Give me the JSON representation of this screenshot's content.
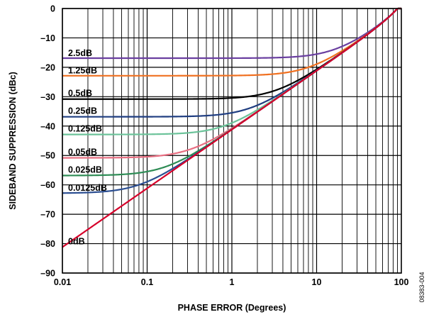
{
  "chart_data": {
    "type": "line",
    "xlabel": "PHASE ERROR (Degrees)",
    "ylabel": "SIDEBAND SUPPRESSION (dBc)",
    "x_scale": "log",
    "xlim": [
      0.01,
      100
    ],
    "ylim": [
      -90,
      0
    ],
    "grid": true,
    "x_ticks": [
      {
        "value": 0.01,
        "label": "0.01"
      },
      {
        "value": 0.1,
        "label": "0.1"
      },
      {
        "value": 1,
        "label": "1"
      },
      {
        "value": 10,
        "label": "10"
      },
      {
        "value": 100,
        "label": "100"
      }
    ],
    "y_ticks": [
      {
        "value": 0,
        "label": "0"
      },
      {
        "value": -10,
        "label": "–10"
      },
      {
        "value": -20,
        "label": "–20"
      },
      {
        "value": -30,
        "label": "–30"
      },
      {
        "value": -40,
        "label": "–40"
      },
      {
        "value": -50,
        "label": "–50"
      },
      {
        "value": -60,
        "label": "–60"
      },
      {
        "value": -70,
        "label": "–70"
      },
      {
        "value": -80,
        "label": "–80"
      },
      {
        "value": -90,
        "label": "–90"
      }
    ],
    "series": [
      {
        "name": "2.5dB",
        "gain_error_db": 2.5,
        "color": "#6a3fa0",
        "y_at_0_01": -17.1
      },
      {
        "name": "1.25dB",
        "gain_error_db": 1.25,
        "color": "#f07020",
        "y_at_0_01": -23.0
      },
      {
        "name": "0.5dB",
        "gain_error_db": 0.5,
        "color": "#000000",
        "y_at_0_01": -30.8
      },
      {
        "name": "0.25dB",
        "gain_error_db": 0.25,
        "color": "#1f3d80",
        "y_at_0_01": -36.8
      },
      {
        "name": "0.125dB",
        "gain_error_db": 0.125,
        "color": "#6cc39a",
        "y_at_0_01": -42.8
      },
      {
        "name": "0.05dB",
        "gain_error_db": 0.05,
        "color": "#e86f82",
        "y_at_0_01": -50.8
      },
      {
        "name": "0.025dB",
        "gain_error_db": 0.025,
        "color": "#2e8c55",
        "y_at_0_01": -56.8
      },
      {
        "name": "0.0125dB",
        "gain_error_db": 0.0125,
        "color": "#2c4f92",
        "y_at_0_01": -63.0
      },
      {
        "name": "0dB",
        "gain_error_db": 0,
        "color": "#d6002a",
        "y_at_0_01": -81.2
      }
    ]
  },
  "figure_id": "08383-004"
}
